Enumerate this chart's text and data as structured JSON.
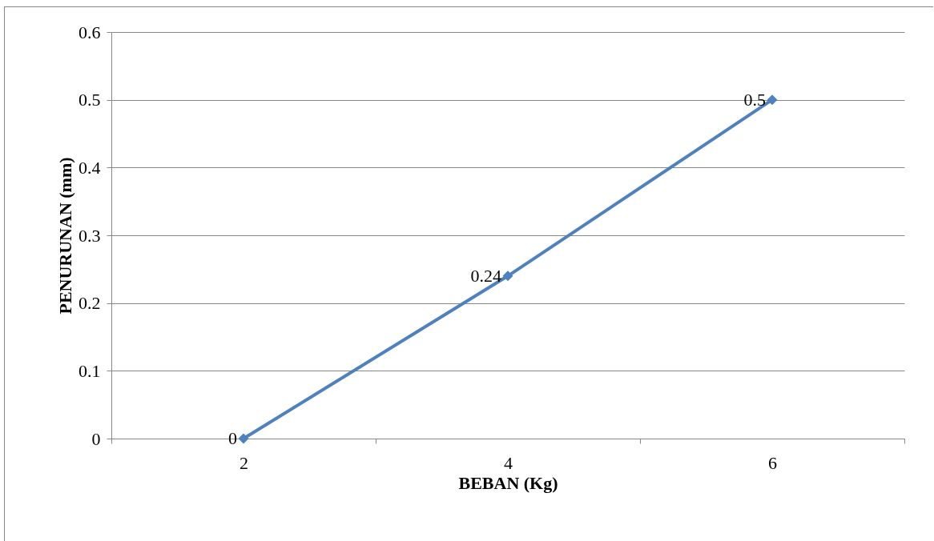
{
  "chart_data": {
    "type": "line",
    "xlabel": "BEBAN (Kg)",
    "ylabel": "PENURUNAN (mm)",
    "categories": [
      "2",
      "4",
      "6"
    ],
    "values": [
      0,
      0.24,
      0.5
    ],
    "color": "#4f81bd",
    "ylim": [
      0,
      0.6
    ],
    "yticks": [
      0,
      0.1,
      0.2,
      0.3,
      0.4,
      0.5,
      0.6
    ],
    "grid": "y",
    "marker": "diamond",
    "line_style": "solid",
    "data_labels": true
  }
}
